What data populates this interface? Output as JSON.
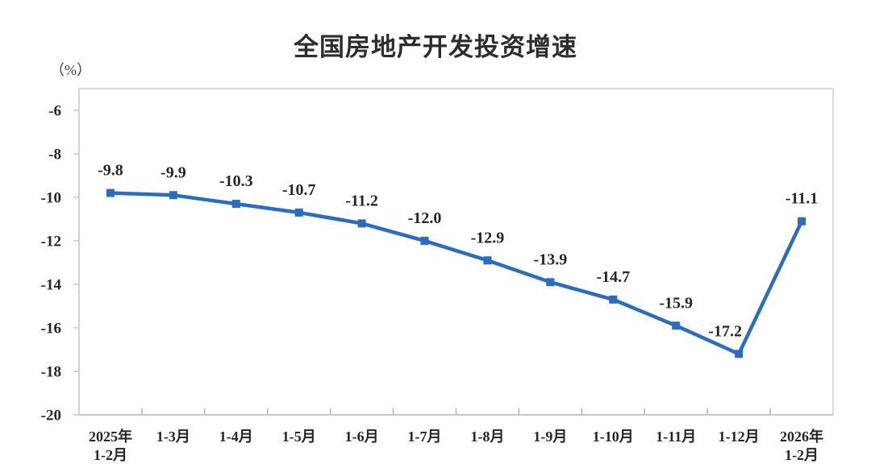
{
  "page": {
    "background_color": "#ffffff"
  },
  "chart_data": {
    "type": "line",
    "title": "全国房地产开发投资增速",
    "unit_label": "（%）",
    "categories": [
      "2025年\n1-2月",
      "1-3月",
      "1-4月",
      "1-5月",
      "1-6月",
      "1-7月",
      "1-8月",
      "1-9月",
      "1-10月",
      "1-11月",
      "1-12月",
      "2026年\n1-2月"
    ],
    "values": [
      -9.8,
      -9.9,
      -10.3,
      -10.7,
      -11.2,
      -12.0,
      -12.9,
      -13.9,
      -14.7,
      -15.9,
      -17.2,
      -11.1
    ],
    "data_labels": [
      "-9.8",
      "-9.9",
      "-10.3",
      "-10.7",
      "-11.2",
      "-12.0",
      "-12.9",
      "-13.9",
      "-14.7",
      "-15.9",
      "-17.2",
      "-11.1"
    ],
    "y_ticks": [
      -6,
      -8,
      -10,
      -12,
      -14,
      -16,
      -18,
      -20
    ],
    "y_tick_labels": [
      "-6",
      "-8",
      "-10",
      "-12",
      "-14",
      "-16",
      "-18",
      "-20"
    ],
    "ylim": [
      -20,
      -5
    ],
    "grid": false,
    "legend": "none",
    "marker": "square",
    "line_color": "#2A6CC0",
    "label_color": "#262626",
    "border_color": "#dcdcdc",
    "axis_color": "#bdbdbd"
  }
}
